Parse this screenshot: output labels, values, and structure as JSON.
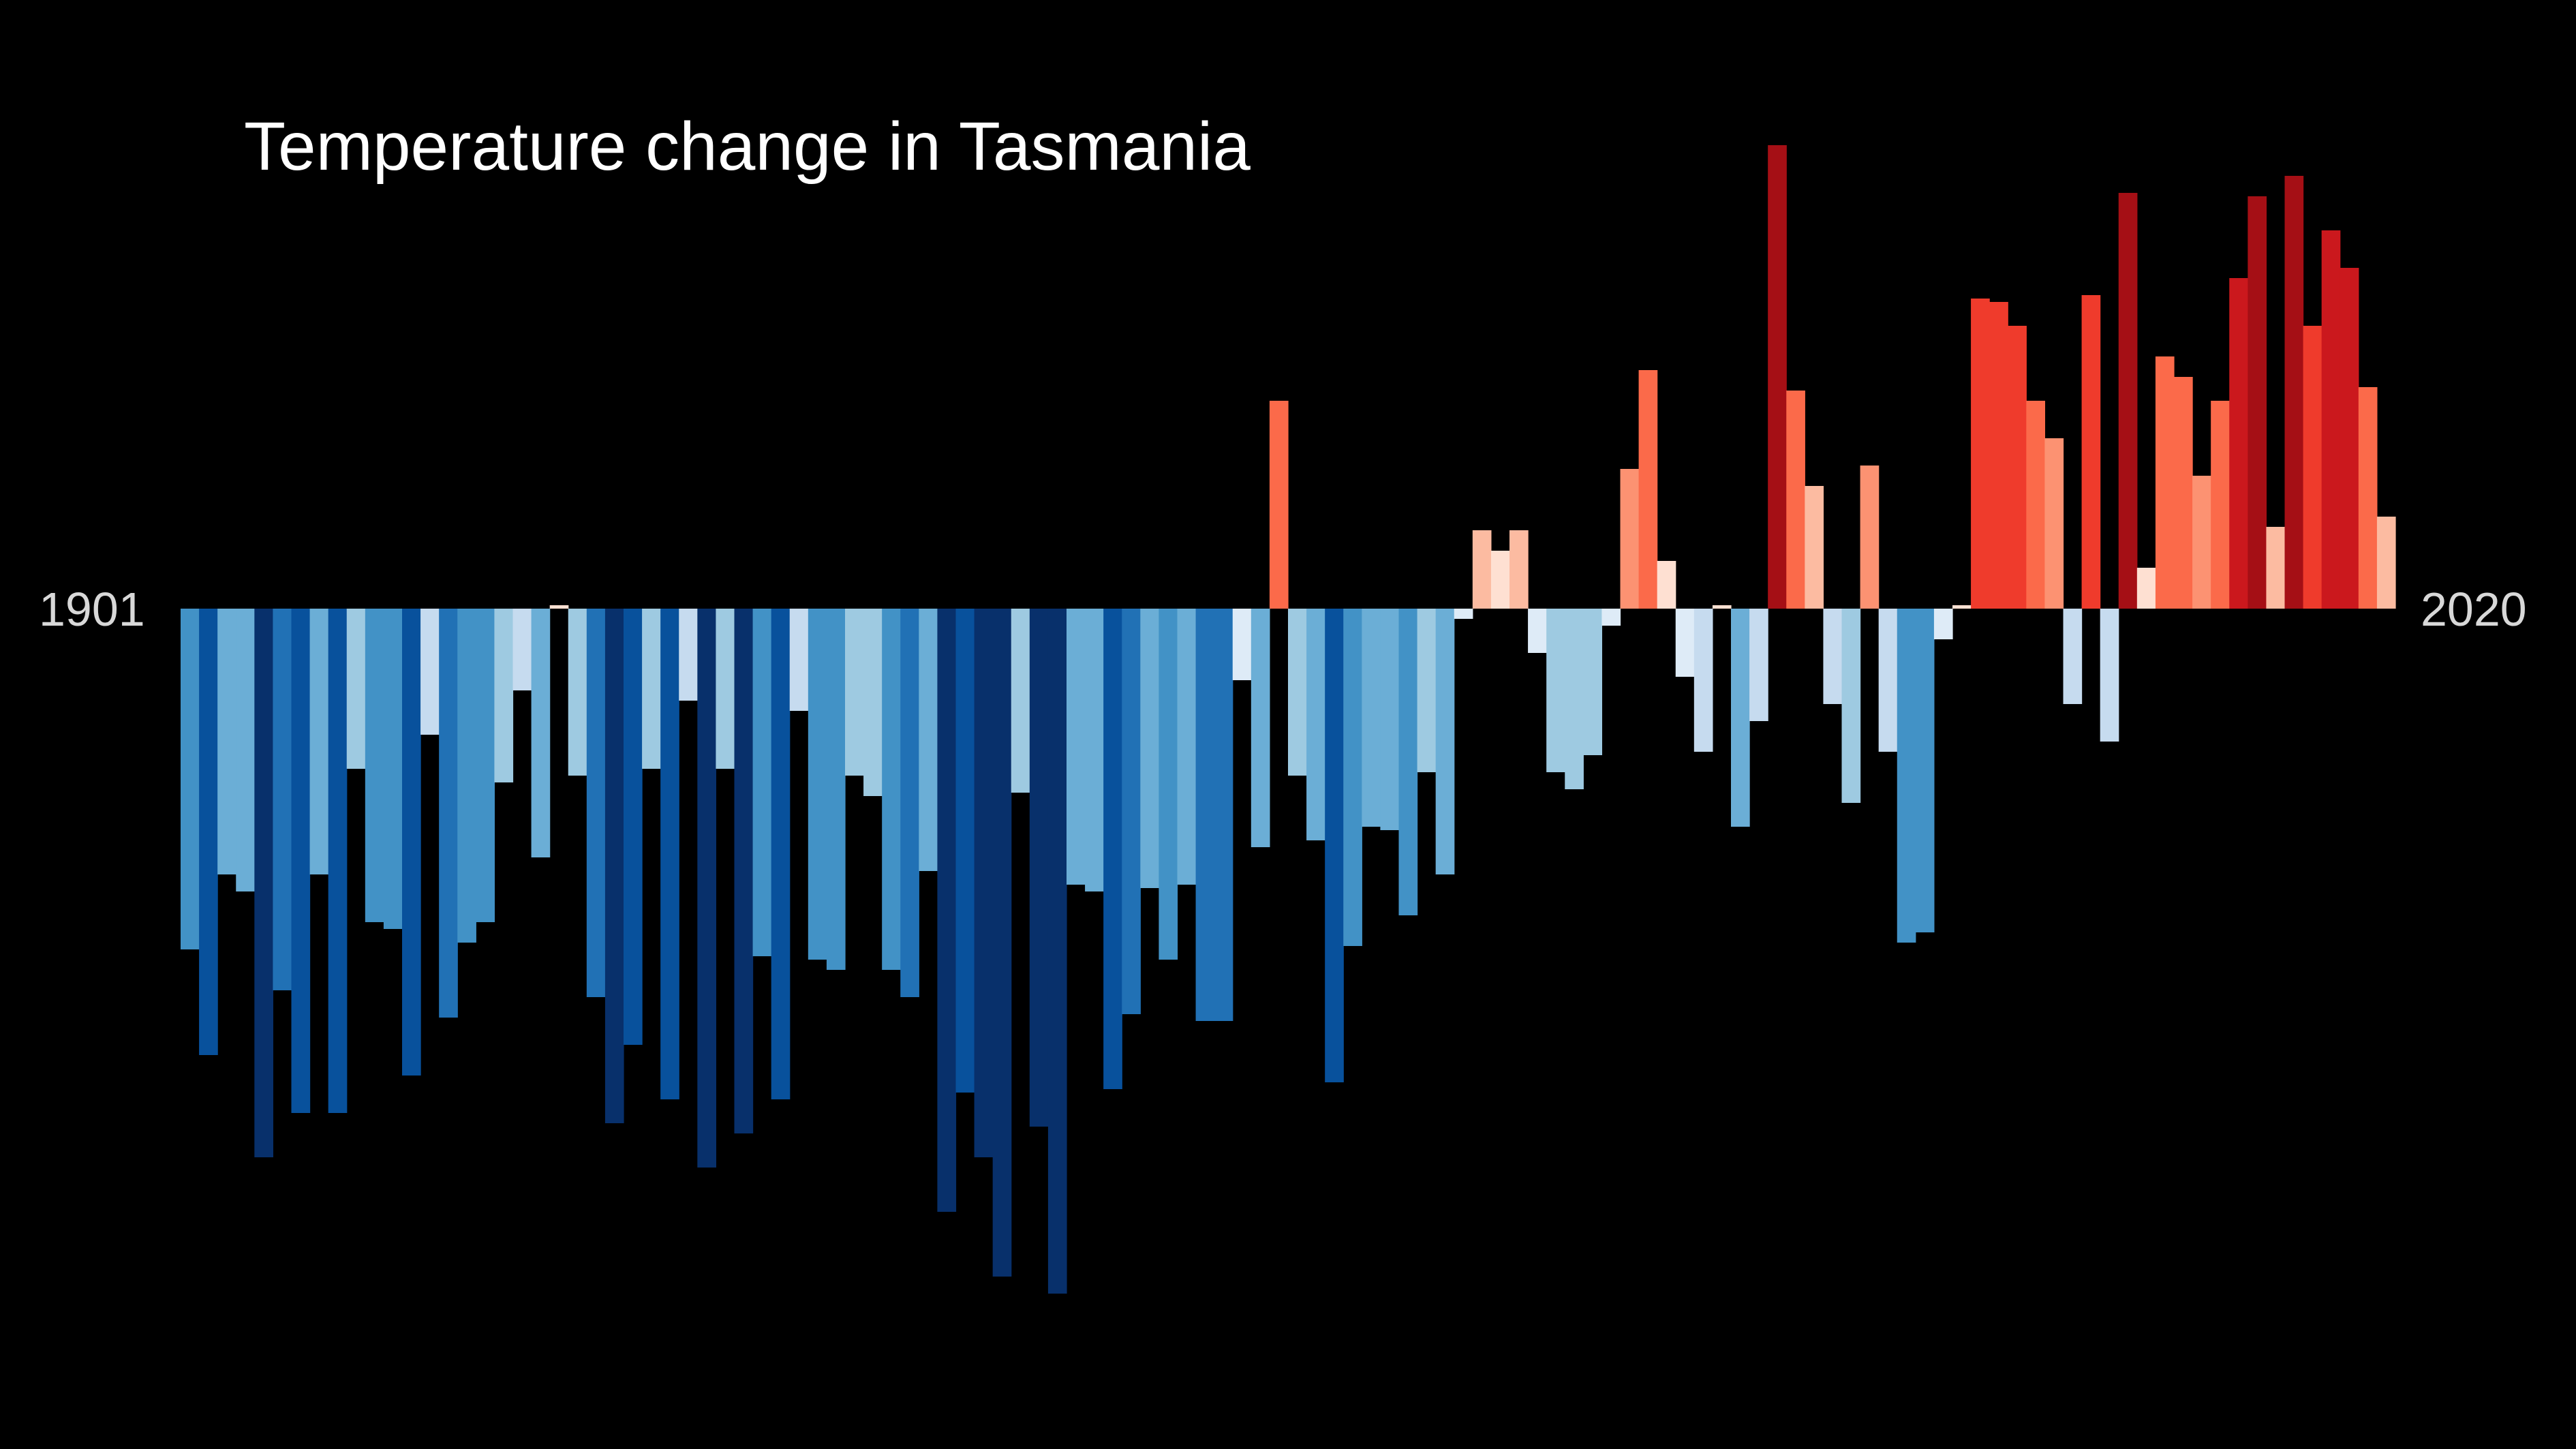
{
  "chart_data": {
    "type": "bar",
    "title": "Temperature change in Tasmania",
    "x_start_label": "1901",
    "x_end_label": "2020",
    "x_start": 1901,
    "x_end": 2020,
    "grid": false,
    "legend": "none",
    "ylim": [
      -2.0,
      1.38
    ],
    "colors": {
      "background": "#000000",
      "title_text": "#ffffff",
      "axis_text": "#d8d8d8",
      "negative_scale": [
        "#08306b",
        "#08519c",
        "#2171b5",
        "#4292c6",
        "#6baed6",
        "#9ecae1",
        "#c6dbef",
        "#deebf7"
      ],
      "positive_scale": [
        "#fee0d2",
        "#fcbba1",
        "#fc9272",
        "#fb6a4a",
        "#ef3b2c",
        "#cb181d",
        "#a50f15"
      ]
    },
    "values": [
      -1.0,
      -1.31,
      -0.78,
      -0.83,
      -1.61,
      -1.12,
      -1.48,
      -0.78,
      -1.48,
      -0.47,
      -0.92,
      -0.94,
      -1.37,
      -0.37,
      -1.2,
      -0.98,
      -0.92,
      -0.51,
      -0.24,
      -0.73,
      0.01,
      -0.49,
      -1.14,
      -1.51,
      -1.28,
      -0.47,
      -1.44,
      -0.27,
      -1.64,
      -0.47,
      -1.54,
      -1.02,
      -1.44,
      -0.3,
      -1.03,
      -1.06,
      -0.49,
      -0.55,
      -1.06,
      -1.14,
      -0.77,
      -1.77,
      -1.42,
      -1.61,
      -1.96,
      -0.54,
      -1.52,
      -2.01,
      -0.81,
      -0.83,
      -1.41,
      -1.19,
      -0.82,
      -1.03,
      -0.81,
      -1.21,
      -1.21,
      -0.21,
      -0.7,
      0.61,
      -0.49,
      -0.68,
      -1.39,
      -0.99,
      -0.64,
      -0.65,
      -0.9,
      -0.48,
      -0.78,
      -0.03,
      0.23,
      0.17,
      0.23,
      -0.13,
      -0.48,
      -0.53,
      -0.43,
      -0.05,
      0.41,
      0.7,
      0.14,
      -0.2,
      -0.42,
      0.01,
      -0.64,
      -0.33,
      1.36,
      0.64,
      0.36,
      -0.28,
      -0.57,
      0.42,
      -0.42,
      -0.98,
      -0.95,
      -0.09,
      0.01,
      0.91,
      0.9,
      0.83,
      0.61,
      0.5,
      -0.28,
      0.92,
      -0.39,
      1.22,
      0.12,
      0.74,
      0.68,
      0.39,
      0.61,
      0.97,
      1.21,
      0.24,
      1.27,
      0.83,
      1.11,
      1.0,
      0.65,
      0.27
    ]
  }
}
